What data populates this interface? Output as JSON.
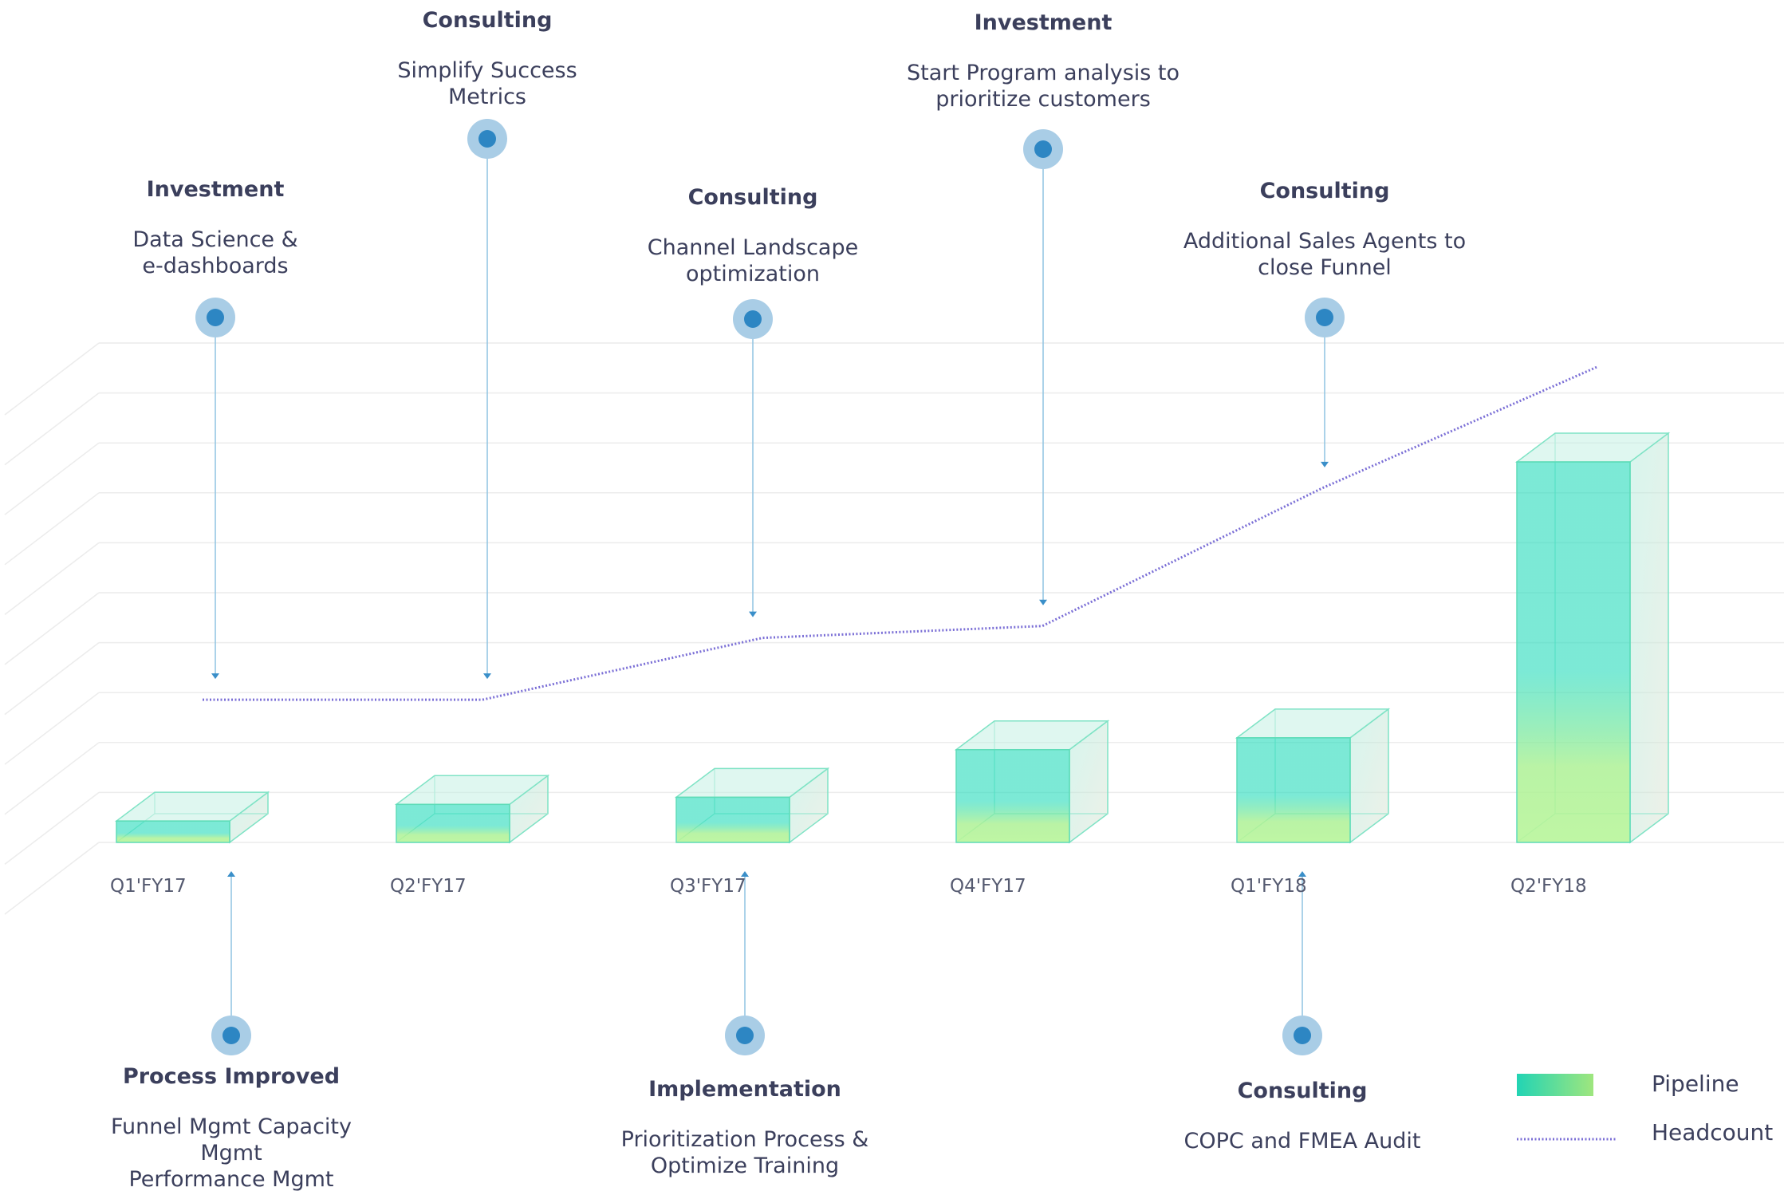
{
  "chart_data": {
    "type": "bar",
    "categories": [
      "Q1'FY17",
      "Q2'FY17",
      "Q3'FY17",
      "Q4'FY17",
      "Q1'FY18",
      "Q2'FY18"
    ],
    "series": [
      {
        "name": "Pipeline",
        "type": "bar",
        "values": [
          0.45,
          0.8,
          0.95,
          1.95,
          2.2,
          8.0
        ]
      },
      {
        "name": "Headcount",
        "type": "line",
        "values": [
          3.0,
          3.0,
          4.3,
          4.55,
          7.45,
          10.0
        ]
      }
    ],
    "ylim": [
      0,
      10.5
    ],
    "grid": true,
    "legend_position": "bottom-right",
    "legend": [
      {
        "label": "Pipeline"
      },
      {
        "label": "Headcount"
      }
    ],
    "colors": {
      "bar_top": "#2bdcbd",
      "bar_bottom": "#a8f08f",
      "line": "#7b6fd6",
      "marker_outer": "#a9cde6",
      "marker_inner": "#2d86c3",
      "text": "#3b3f5c"
    },
    "annotations_top": [
      {
        "category": "Q1'FY17",
        "title": "Investment",
        "lines": [
          "Data Science &",
          "e-dashboards"
        ]
      },
      {
        "category": "Q2'FY17",
        "title": "Consulting",
        "lines": [
          "Simplify Success",
          "Metrics"
        ]
      },
      {
        "category": "Q3'FY17",
        "title": "Consulting",
        "lines": [
          "Channel Landscape",
          "optimization"
        ]
      },
      {
        "category": "Q4'FY17",
        "title": "Investment",
        "lines": [
          "Start Program analysis  to",
          "prioritize customers"
        ]
      },
      {
        "category": "Q1'FY18",
        "title": "Consulting",
        "lines": [
          "Additional Sales Agents to",
          "close Funnel"
        ]
      }
    ],
    "annotations_bottom": [
      {
        "category": "Q1'FY17",
        "title": "Process Improved",
        "lines": [
          "Funnel Mgmt Capacity",
          "Mgmt",
          "Performance Mgmt"
        ]
      },
      {
        "category": "Q3'FY17",
        "title": "Implementation",
        "lines": [
          "Prioritization Process &",
          "Optimize Training"
        ]
      },
      {
        "category": "Q1'FY18",
        "title": "Consulting",
        "lines": [
          "COPC and FMEA Audit"
        ]
      }
    ]
  }
}
